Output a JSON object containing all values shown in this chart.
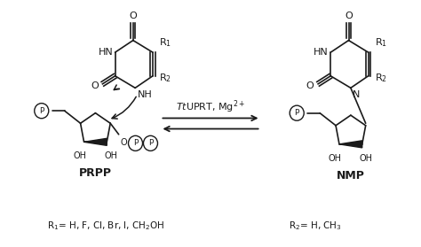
{
  "background_color": "#ffffff",
  "figure_width": 4.74,
  "figure_height": 2.79,
  "dpi": 100,
  "title": "",
  "bottom_text_left": "R$_1$= H, F, Cl, Br, I, CH$_2$OH",
  "bottom_text_right": "R$_2$= H, CH$_3$",
  "label_prpp": "PRPP",
  "label_nmp": "NMP",
  "arrow_label": "TtUPRT, Mg$^{2+}$",
  "text_color": "#1a1a1a",
  "line_color": "#1a1a1a",
  "font_size_main": 8,
  "font_size_label": 9,
  "font_size_small": 7
}
